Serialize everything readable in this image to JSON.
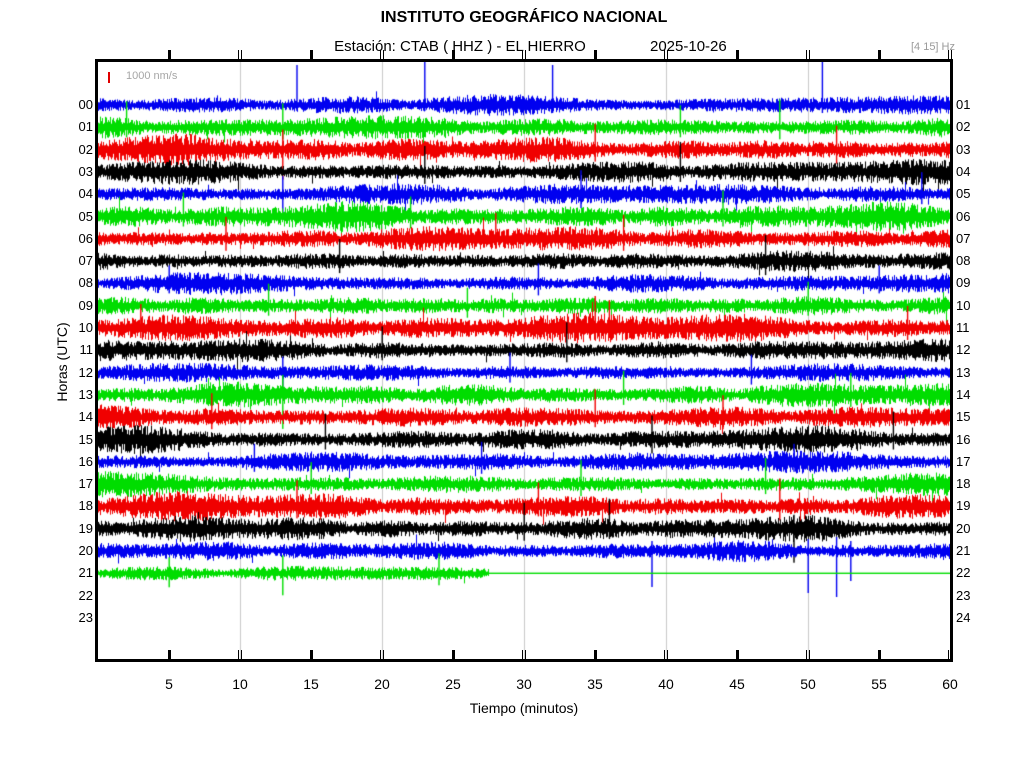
{
  "header": {
    "title": "INSTITUTO GEOGRÁFICO NACIONAL",
    "station_line": "Estación:  CTAB ( HHZ ) - EL HIERRO",
    "date": "2025-10-26",
    "filter_label": "[4 15] Hz"
  },
  "scale": {
    "label": "1000 nm/s"
  },
  "chart_data": {
    "type": "line",
    "subtype": "helicorder-seismogram",
    "title": "INSTITUTO GEOGRÁFICO NACIONAL",
    "subtitle": "Estación:  CTAB ( HHZ ) - EL HIERRO  2025-10-26",
    "xlabel": "Tiempo (minutos)",
    "ylabel": "Horas (UTC)",
    "xlim": [
      0,
      60
    ],
    "x_ticks": [
      5,
      10,
      15,
      20,
      25,
      30,
      35,
      40,
      45,
      50,
      55,
      60
    ],
    "x_gridlines": [
      10,
      20,
      30,
      40,
      50
    ],
    "grid": true,
    "legend_position": "none",
    "left_hour_labels": [
      "00",
      "01",
      "02",
      "03",
      "04",
      "05",
      "06",
      "07",
      "08",
      "09",
      "10",
      "11",
      "12",
      "13",
      "14",
      "15",
      "16",
      "17",
      "18",
      "19",
      "20",
      "21",
      "22",
      "23"
    ],
    "right_hour_labels": [
      "01",
      "02",
      "03",
      "04",
      "05",
      "06",
      "07",
      "08",
      "09",
      "10",
      "11",
      "12",
      "13",
      "14",
      "15",
      "16",
      "17",
      "18",
      "19",
      "20",
      "21",
      "22",
      "23",
      "24"
    ],
    "palette": {
      "blue": "#0000f0",
      "green": "#00dd00",
      "red": "#f00000",
      "black": "#000000",
      "grid": "#c8c8c8"
    },
    "color_cycle": [
      "blue",
      "green",
      "red",
      "black"
    ],
    "amplitude_scale_label": "1000 nm/s",
    "rows": [
      {
        "hour": 0,
        "color": "blue",
        "amp": 9,
        "from": 0,
        "to": 60,
        "spikes": [
          [
            14,
            40,
            6
          ],
          [
            23,
            46,
            6
          ],
          [
            32,
            40,
            8
          ],
          [
            51,
            45,
            8
          ]
        ]
      },
      {
        "hour": 1,
        "color": "green",
        "amp": 11,
        "from": 0,
        "to": 60,
        "spikes": [
          [
            2,
            26,
            10
          ],
          [
            13,
            24,
            12
          ],
          [
            41,
            22,
            10
          ],
          [
            48,
            28,
            12
          ]
        ]
      },
      {
        "hour": 2,
        "color": "red",
        "amp": 12,
        "from": 0,
        "to": 60,
        "spikes": [
          [
            13,
            20,
            30
          ],
          [
            35,
            26,
            12
          ],
          [
            52,
            24,
            14
          ]
        ]
      },
      {
        "hour": 3,
        "color": "black",
        "amp": 11,
        "from": 0,
        "to": 60,
        "spikes": [
          [
            23,
            26,
            12
          ],
          [
            41,
            30,
            10
          ]
        ]
      },
      {
        "hour": 4,
        "color": "blue",
        "amp": 10,
        "from": 0,
        "to": 60,
        "spikes": [
          [
            13,
            18,
            26
          ],
          [
            34,
            24,
            14
          ],
          [
            58,
            22,
            10
          ]
        ]
      },
      {
        "hour": 5,
        "color": "green",
        "amp": 12,
        "from": 0,
        "to": 60,
        "spikes": [
          [
            6,
            24,
            10
          ],
          [
            22,
            20,
            12
          ],
          [
            44,
            26,
            10
          ]
        ]
      },
      {
        "hour": 6,
        "color": "red",
        "amp": 11,
        "from": 0,
        "to": 60,
        "spikes": [
          [
            9,
            22,
            12
          ],
          [
            28,
            26,
            10
          ],
          [
            37,
            24,
            12
          ]
        ]
      },
      {
        "hour": 7,
        "color": "black",
        "amp": 10,
        "from": 0,
        "to": 60,
        "spikes": [
          [
            17,
            22,
            12
          ],
          [
            47,
            26,
            14
          ]
        ]
      },
      {
        "hour": 8,
        "color": "blue",
        "amp": 9,
        "from": 0,
        "to": 60,
        "spikes": [
          [
            5,
            18,
            10
          ],
          [
            31,
            20,
            12
          ],
          [
            55,
            18,
            10
          ]
        ]
      },
      {
        "hour": 9,
        "color": "green",
        "amp": 11,
        "from": 0,
        "to": 60,
        "spikes": [
          [
            12,
            22,
            10
          ],
          [
            26,
            18,
            12
          ],
          [
            50,
            24,
            10
          ]
        ]
      },
      {
        "hour": 10,
        "color": "red",
        "amp": 12,
        "from": 0,
        "to": 60,
        "spikes": [
          [
            3,
            24,
            10
          ],
          [
            35,
            32,
            12
          ],
          [
            36,
            28,
            10
          ],
          [
            57,
            22,
            12
          ]
        ]
      },
      {
        "hour": 11,
        "color": "black",
        "amp": 10,
        "from": 0,
        "to": 60,
        "spikes": [
          [
            20,
            24,
            10
          ],
          [
            33,
            28,
            12
          ]
        ]
      },
      {
        "hour": 12,
        "color": "blue",
        "amp": 9,
        "from": 0,
        "to": 60,
        "spikes": [
          [
            13,
            16,
            24
          ],
          [
            29,
            20,
            10
          ],
          [
            46,
            18,
            12
          ]
        ]
      },
      {
        "hour": 13,
        "color": "green",
        "amp": 11,
        "from": 0,
        "to": 60,
        "spikes": [
          [
            13,
            20,
            34
          ],
          [
            37,
            24,
            10
          ],
          [
            53,
            22,
            12
          ]
        ]
      },
      {
        "hour": 14,
        "color": "red",
        "amp": 12,
        "from": 0,
        "to": 60,
        "spikes": [
          [
            8,
            24,
            12
          ],
          [
            35,
            28,
            10
          ],
          [
            44,
            22,
            12
          ]
        ]
      },
      {
        "hour": 15,
        "color": "black",
        "amp": 11,
        "from": 0,
        "to": 60,
        "spikes": [
          [
            16,
            26,
            10
          ],
          [
            39,
            24,
            14
          ],
          [
            56,
            28,
            10
          ]
        ]
      },
      {
        "hour": 16,
        "color": "blue",
        "amp": 9,
        "from": 0,
        "to": 60,
        "spikes": [
          [
            11,
            18,
            10
          ],
          [
            27,
            20,
            12
          ],
          [
            49,
            18,
            10
          ]
        ]
      },
      {
        "hour": 17,
        "color": "green",
        "amp": 10,
        "from": 0,
        "to": 60,
        "spikes": [
          [
            15,
            22,
            10
          ],
          [
            34,
            24,
            12
          ],
          [
            47,
            26,
            10
          ]
        ]
      },
      {
        "hour": 18,
        "color": "red",
        "amp": 12,
        "from": 0,
        "to": 60,
        "spikes": [
          [
            14,
            26,
            12
          ],
          [
            31,
            24,
            10
          ],
          [
            48,
            28,
            14
          ]
        ]
      },
      {
        "hour": 19,
        "color": "black",
        "amp": 11,
        "from": 0,
        "to": 60,
        "spikes": [
          [
            30,
            26,
            12
          ],
          [
            36,
            30,
            10
          ],
          [
            49,
            14,
            34
          ]
        ]
      },
      {
        "hour": 20,
        "color": "blue",
        "amp": 9,
        "from": 0,
        "to": 60,
        "spikes": [
          [
            39,
            10,
            36
          ],
          [
            50,
            12,
            42
          ],
          [
            52,
            14,
            46
          ],
          [
            53,
            10,
            30
          ]
        ]
      },
      {
        "hour": 21,
        "color": "green",
        "amp": 7,
        "from": 0,
        "to": 27.5,
        "flat_to": 60,
        "spikes": [
          [
            5,
            16,
            14
          ],
          [
            13,
            18,
            22
          ],
          [
            24,
            20,
            12
          ]
        ]
      },
      {
        "hour": 22,
        "color": "red",
        "no_data": true
      },
      {
        "hour": 23,
        "color": "black",
        "no_data": true
      }
    ]
  }
}
